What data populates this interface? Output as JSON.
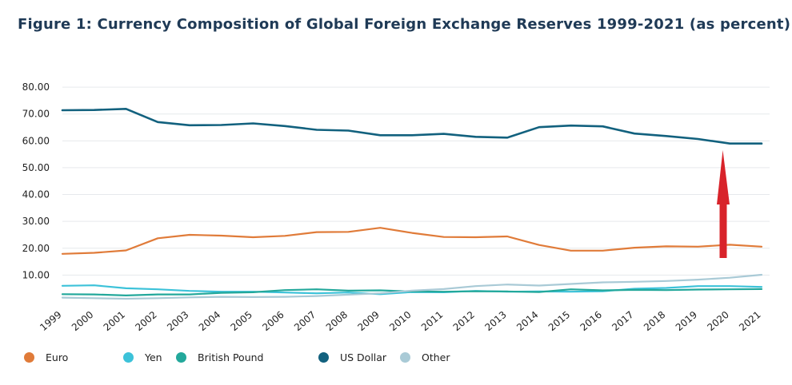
{
  "chart_data": {
    "type": "line",
    "title": "Figure 1: Currency Composition of Global Foreign Exchange Reserves 1999-2021 (as percent)",
    "x": [
      "1999",
      "2000",
      "2001",
      "2002",
      "2003",
      "2004",
      "2005",
      "2006",
      "2007",
      "2008",
      "2009",
      "2010",
      "2011",
      "2012",
      "2013",
      "2014",
      "2015",
      "2016",
      "2017",
      "2018",
      "2019",
      "2020",
      "2021"
    ],
    "y_ticks": [
      "10.00",
      "20.00",
      "30.00",
      "40.00",
      "50.00",
      "60.00",
      "70.00",
      "80.00"
    ],
    "ylim": [
      0,
      83
    ],
    "grid": true,
    "legend_position": "bottom",
    "series": [
      {
        "name": "Euro",
        "color": "#e07b39",
        "values": [
          17.9,
          18.3,
          19.2,
          23.7,
          25.0,
          24.7,
          24.1,
          24.6,
          26.0,
          26.1,
          27.6,
          25.7,
          24.2,
          24.1,
          24.4,
          21.2,
          19.1,
          19.1,
          20.2,
          20.7,
          20.6,
          21.3,
          20.6
        ]
      },
      {
        "name": "Yen",
        "color": "#3cc2d9",
        "values": [
          6.0,
          6.2,
          5.1,
          4.7,
          4.1,
          3.8,
          3.8,
          3.5,
          3.2,
          3.5,
          2.9,
          3.7,
          3.6,
          4.1,
          3.8,
          3.9,
          3.8,
          4.0,
          4.9,
          5.2,
          5.9,
          5.9,
          5.6
        ]
      },
      {
        "name": "British Pound",
        "color": "#23a89b",
        "values": [
          2.9,
          2.8,
          2.4,
          2.8,
          2.8,
          3.4,
          3.6,
          4.4,
          4.7,
          4.2,
          4.3,
          3.9,
          3.8,
          4.0,
          3.9,
          3.7,
          4.7,
          4.3,
          4.5,
          4.4,
          4.6,
          4.7,
          4.8
        ]
      },
      {
        "name": "US Dollar",
        "color": "#12617e",
        "values": [
          71.4,
          71.5,
          71.9,
          67.0,
          65.8,
          65.9,
          66.5,
          65.5,
          64.1,
          63.8,
          62.1,
          62.1,
          62.6,
          61.5,
          61.2,
          65.1,
          65.7,
          65.4,
          62.7,
          61.8,
          60.7,
          59.0,
          59.0
        ]
      },
      {
        "name": "Other",
        "color": "#a9cad6",
        "values": [
          1.6,
          1.4,
          1.2,
          1.4,
          1.7,
          1.9,
          1.8,
          1.9,
          2.2,
          2.7,
          3.2,
          4.2,
          4.8,
          5.9,
          6.5,
          6.1,
          6.7,
          7.3,
          7.5,
          7.8,
          8.3,
          9.0,
          10.1
        ]
      }
    ]
  }
}
